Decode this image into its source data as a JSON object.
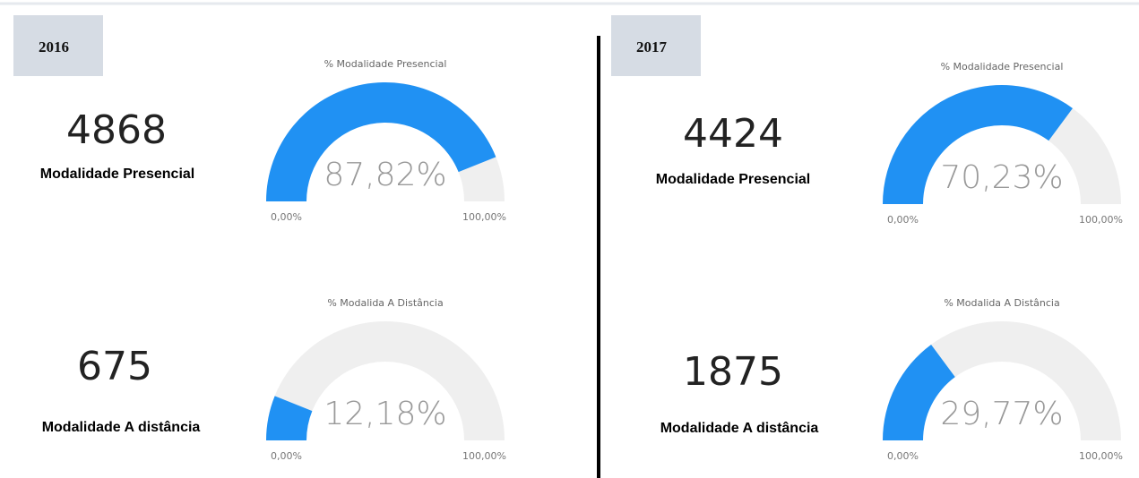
{
  "panels": [
    {
      "year": "2016",
      "kpis": [
        {
          "value": 4868,
          "label": "Modalidade Presencial"
        },
        {
          "value": 675,
          "label": "Modalidade A distância"
        }
      ]
    },
    {
      "year": "2017",
      "kpis": [
        {
          "value": 4424,
          "label": "Modalidade Presencial"
        },
        {
          "value": 1875,
          "label": "Modalidade A distância"
        }
      ]
    }
  ],
  "chart_data": [
    {
      "type": "gauge",
      "title": "% Modalidade Presencial",
      "value": 87.82,
      "value_label": "87,82%",
      "min": 0,
      "max": 100,
      "min_label": "0,00%",
      "max_label": "100,00%",
      "color": "#2091f3",
      "track_color": "#efefef"
    },
    {
      "type": "gauge",
      "title": "% Modalida A Distância",
      "value": 12.18,
      "value_label": "12,18%",
      "min": 0,
      "max": 100,
      "min_label": "0,00%",
      "max_label": "100,00%",
      "color": "#2091f3",
      "track_color": "#efefef"
    },
    {
      "type": "gauge",
      "title": "% Modalidade Presencial",
      "value": 70.23,
      "value_label": "70,23%",
      "min": 0,
      "max": 100,
      "min_label": "0,00%",
      "max_label": "100,00%",
      "color": "#2091f3",
      "track_color": "#efefef"
    },
    {
      "type": "gauge",
      "title": "% Modalida A Distância",
      "value": 29.77,
      "value_label": "29,77%",
      "min": 0,
      "max": 100,
      "min_label": "0,00%",
      "max_label": "100,00%",
      "color": "#2091f3",
      "track_color": "#efefef"
    }
  ]
}
